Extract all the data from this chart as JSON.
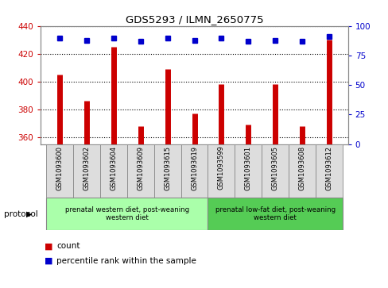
{
  "title": "GDS5293 / ILMN_2650775",
  "samples": [
    "GSM1093600",
    "GSM1093602",
    "GSM1093604",
    "GSM1093609",
    "GSM1093615",
    "GSM1093619",
    "GSM1093599",
    "GSM1093601",
    "GSM1093605",
    "GSM1093608",
    "GSM1093612"
  ],
  "counts": [
    405,
    386,
    425,
    368,
    409,
    377,
    398,
    369,
    398,
    368,
    430
  ],
  "percentiles": [
    90,
    88,
    90,
    87,
    90,
    88,
    90,
    87,
    88,
    87,
    91
  ],
  "ylim_left": [
    355,
    440
  ],
  "ylim_right": [
    0,
    100
  ],
  "yticks_left": [
    360,
    380,
    400,
    420,
    440
  ],
  "yticks_right": [
    0,
    25,
    50,
    75,
    100
  ],
  "bar_color": "#cc0000",
  "dot_color": "#0000cc",
  "group1_label": "prenatal western diet, post-weaning\nwestern diet",
  "group2_label": "prenatal low-fat diet, post-weaning\nwestern diet",
  "group1_count": 6,
  "group2_count": 5,
  "group1_color": "#aaffaa",
  "group2_color": "#55cc55",
  "protocol_label": "protocol",
  "legend_count_label": "count",
  "legend_percentile_label": "percentile rank within the sample",
  "left_axis_color": "#cc0000",
  "right_axis_color": "#0000cc",
  "bar_linewidth": 5
}
